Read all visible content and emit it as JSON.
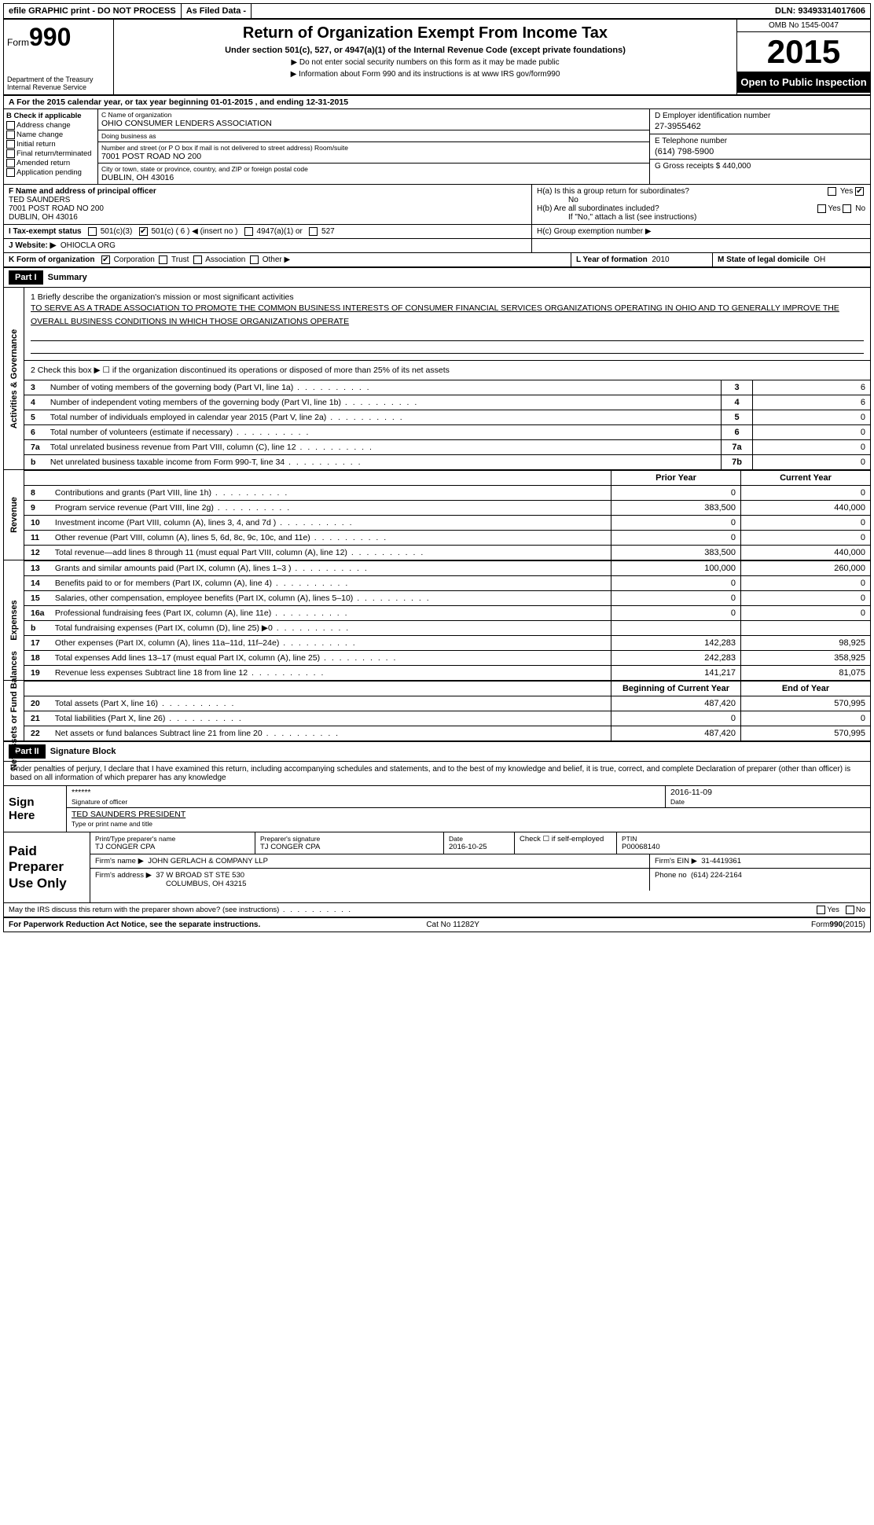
{
  "topbar": {
    "efile": "efile GRAPHIC print - DO NOT PROCESS",
    "asfiled": "As Filed Data -",
    "dln": "DLN: 93493314017606"
  },
  "header": {
    "formword": "Form",
    "formnum": "990",
    "dept": "Department of the Treasury",
    "irs": "Internal Revenue Service",
    "title": "Return of Organization Exempt From Income Tax",
    "sub": "Under section 501(c), 527, or 4947(a)(1) of the Internal Revenue Code (except private foundations)",
    "note1": "▶ Do not enter social security numbers on this form as it may be made public",
    "note2": "▶ Information about Form 990 and its instructions is at www IRS gov/form990",
    "omb": "OMB No 1545-0047",
    "year": "2015",
    "open": "Open to Public Inspection"
  },
  "rowA": "A  For the 2015 calendar year, or tax year beginning 01-01-2015    , and ending 12-31-2015",
  "B": {
    "hdr": "B Check if applicable",
    "c1": "Address change",
    "c2": "Name change",
    "c3": "Initial return",
    "c4": "Final return/terminated",
    "c5": "Amended return",
    "c6": "Application pending"
  },
  "C": {
    "name_lbl": "C Name of organization",
    "name": "OHIO CONSUMER LENDERS ASSOCIATION",
    "dba_lbl": "Doing business as",
    "dba": "",
    "addr_lbl": "Number and street (or P O  box if mail is not delivered to street address)  Room/suite",
    "addr": "7001 POST ROAD NO 200",
    "city_lbl": "City or town, state or province, country, and ZIP or foreign postal code",
    "city": "DUBLIN, OH  43016"
  },
  "D": {
    "lbl": "D Employer identification number",
    "val": "27-3955462"
  },
  "E": {
    "lbl": "E Telephone number",
    "val": "(614) 798-5900"
  },
  "G": {
    "lbl": "G Gross receipts $",
    "val": "440,000"
  },
  "F": {
    "lbl": "F  Name and address of principal officer",
    "name": "TED SAUNDERS",
    "addr1": "7001 POST ROAD NO 200",
    "addr2": "DUBLIN, OH  43016"
  },
  "H": {
    "a": "H(a)  Is this a group return for subordinates?",
    "a_ans": "No",
    "b": "H(b)  Are all subordinates included?",
    "b_note": "If \"No,\" attach a list  (see instructions)",
    "c": "H(c)   Group exemption number ▶"
  },
  "I": {
    "lbl": "I   Tax-exempt status",
    "o1": "501(c)(3)",
    "o2": "501(c) ( 6 ) ◀ (insert no )",
    "o3": "4947(a)(1) or",
    "o4": "527"
  },
  "J": {
    "lbl": "J  Website: ▶",
    "val": "OHIOCLA ORG"
  },
  "K": {
    "lbl": "K Form of organization",
    "o1": "Corporation",
    "o2": "Trust",
    "o3": "Association",
    "o4": "Other ▶"
  },
  "L": {
    "lbl": "L Year of formation",
    "val": "2010"
  },
  "M": {
    "lbl": "M State of legal domicile",
    "val": "OH"
  },
  "part1": {
    "hdr": "Part I",
    "title": "Summary",
    "q1_lbl": "1 Briefly describe the organization's mission or most significant activities",
    "q1": "TO SERVE AS A TRADE ASSOCIATION TO PROMOTE THE COMMON BUSINESS INTERESTS OF CONSUMER FINANCIAL SERVICES ORGANIZATIONS OPERATING IN OHIO AND TO GENERALLY IMPROVE THE OVERALL BUSINESS CONDITIONS IN WHICH THOSE ORGANIZATIONS OPERATE",
    "q2": "2  Check this box ▶ ☐ if the organization discontinued its operations or disposed of more than 25% of its net assets",
    "tabs": {
      "gov": "Activities & Governance",
      "rev": "Revenue",
      "exp": "Expenses",
      "net": "Net Assets or Fund Balances"
    },
    "lines_gov": [
      {
        "n": "3",
        "d": "Number of voting members of the governing body (Part VI, line 1a)",
        "l": "3",
        "v": "6"
      },
      {
        "n": "4",
        "d": "Number of independent voting members of the governing body (Part VI, line 1b)",
        "l": "4",
        "v": "6"
      },
      {
        "n": "5",
        "d": "Total number of individuals employed in calendar year 2015 (Part V, line 2a)",
        "l": "5",
        "v": "0"
      },
      {
        "n": "6",
        "d": "Total number of volunteers (estimate if necessary)",
        "l": "6",
        "v": "0"
      },
      {
        "n": "7a",
        "d": "Total unrelated business revenue from Part VIII, column (C), line 12",
        "l": "7a",
        "v": "0"
      },
      {
        "n": "b",
        "d": "Net unrelated business taxable income from Form 990-T, line 34",
        "l": "7b",
        "v": "0"
      }
    ],
    "col_prior": "Prior Year",
    "col_current": "Current Year",
    "lines_rev": [
      {
        "n": "8",
        "d": "Contributions and grants (Part VIII, line 1h)",
        "p": "0",
        "c": "0"
      },
      {
        "n": "9",
        "d": "Program service revenue (Part VIII, line 2g)",
        "p": "383,500",
        "c": "440,000"
      },
      {
        "n": "10",
        "d": "Investment income (Part VIII, column (A), lines 3, 4, and 7d )",
        "p": "0",
        "c": "0"
      },
      {
        "n": "11",
        "d": "Other revenue (Part VIII, column (A), lines 5, 6d, 8c, 9c, 10c, and 11e)",
        "p": "0",
        "c": "0"
      },
      {
        "n": "12",
        "d": "Total revenue—add lines 8 through 11 (must equal Part VIII, column (A), line 12)",
        "p": "383,500",
        "c": "440,000"
      }
    ],
    "lines_exp": [
      {
        "n": "13",
        "d": "Grants and similar amounts paid (Part IX, column (A), lines 1–3 )",
        "p": "100,000",
        "c": "260,000"
      },
      {
        "n": "14",
        "d": "Benefits paid to or for members (Part IX, column (A), line 4)",
        "p": "0",
        "c": "0"
      },
      {
        "n": "15",
        "d": "Salaries, other compensation, employee benefits (Part IX, column (A), lines 5–10)",
        "p": "0",
        "c": "0"
      },
      {
        "n": "16a",
        "d": "Professional fundraising fees (Part IX, column (A), line 11e)",
        "p": "0",
        "c": "0"
      },
      {
        "n": "b",
        "d": "Total fundraising expenses (Part IX, column (D), line 25) ▶0",
        "p": "",
        "c": ""
      },
      {
        "n": "17",
        "d": "Other expenses (Part IX, column (A), lines 11a–11d, 11f–24e)",
        "p": "142,283",
        "c": "98,925"
      },
      {
        "n": "18",
        "d": "Total expenses  Add lines 13–17 (must equal Part IX, column (A), line 25)",
        "p": "242,283",
        "c": "358,925"
      },
      {
        "n": "19",
        "d": "Revenue less expenses  Subtract line 18 from line 12",
        "p": "141,217",
        "c": "81,075"
      }
    ],
    "col_begin": "Beginning of Current Year",
    "col_end": "End of Year",
    "lines_net": [
      {
        "n": "20",
        "d": "Total assets (Part X, line 16)",
        "p": "487,420",
        "c": "570,995"
      },
      {
        "n": "21",
        "d": "Total liabilities (Part X, line 26)",
        "p": "0",
        "c": "0"
      },
      {
        "n": "22",
        "d": "Net assets or fund balances  Subtract line 21 from line 20",
        "p": "487,420",
        "c": "570,995"
      }
    ]
  },
  "part2": {
    "hdr": "Part II",
    "title": "Signature Block",
    "decl": "Under penalties of perjury, I declare that I have examined this return, including accompanying schedules and statements, and to the best of my knowledge and belief, it is true, correct, and complete  Declaration of preparer (other than officer) is based on all information of which preparer has any knowledge",
    "sign_here": "Sign Here",
    "sig_stars": "******",
    "sig_officer_lbl": "Signature of officer",
    "sig_date": "2016-11-09",
    "sig_date_lbl": "Date",
    "sig_name": "TED SAUNDERS PRESIDENT",
    "sig_name_lbl": "Type or print name and title",
    "paid": "Paid Preparer Use Only",
    "prep_name_lbl": "Print/Type preparer's name",
    "prep_name": "TJ CONGER CPA",
    "prep_sig_lbl": "Preparer's signature",
    "prep_sig": "TJ CONGER CPA",
    "prep_date_lbl": "Date",
    "prep_date": "2016-10-25",
    "prep_check": "Check ☐ if self-employed",
    "ptin_lbl": "PTIN",
    "ptin": "P00068140",
    "firm_name_lbl": "Firm's name     ▶",
    "firm_name": "JOHN GERLACH & COMPANY LLP",
    "firm_ein_lbl": "Firm's EIN ▶",
    "firm_ein": "31-4419361",
    "firm_addr_lbl": "Firm's address ▶",
    "firm_addr": "37 W BROAD ST STE 530",
    "firm_city": "COLUMBUS, OH  43215",
    "firm_phone_lbl": "Phone no",
    "firm_phone": "(614) 224-2164",
    "may_irs": "May the IRS discuss this return with the preparer shown above? (see instructions)",
    "yes": "Yes",
    "no": "No"
  },
  "footer": {
    "left": "For Paperwork Reduction Act Notice, see the separate instructions.",
    "mid": "Cat No  11282Y",
    "right": "Form 990 (2015)"
  }
}
